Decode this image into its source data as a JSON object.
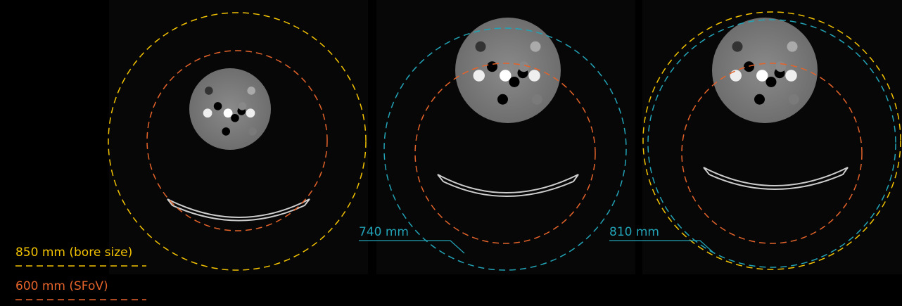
{
  "legend": {
    "bore": "850 mm (bore size)",
    "sfov": "600 mm (SFoV)"
  },
  "panels": [
    {
      "label": "740 mm"
    },
    {
      "label": "810 mm"
    }
  ]
}
